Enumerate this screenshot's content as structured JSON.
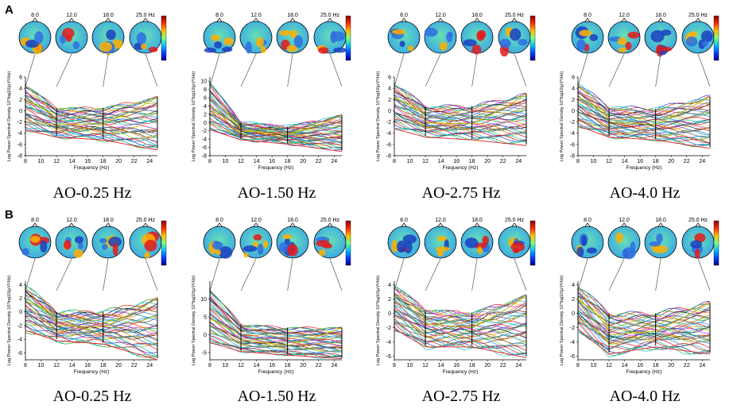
{
  "chart_data": [
    {
      "row": "A",
      "panels": [
        {
          "caption": "AO-0.25 Hz",
          "type": "line",
          "xlabel": "Frequency (Hz)",
          "ylabel": "Log Power Spectral Density 10*log10(μV²/Hz)",
          "x_ticks": [
            8,
            10,
            12,
            14,
            16,
            18,
            20,
            22,
            24
          ],
          "y_ticks": [
            -8,
            -6,
            -4,
            -2,
            0,
            2,
            4,
            6
          ],
          "xlim": [
            8,
            25
          ],
          "ylim": [
            -8,
            6
          ],
          "topo_labels": [
            "8.0",
            "12.0",
            "18.0",
            "25.0 Hz"
          ],
          "topo_freqs": [
            8,
            12,
            18,
            25
          ],
          "envelope": {
            "x": [
              8,
              12,
              18,
              25
            ],
            "high": [
              4.8,
              0.5,
              0.5,
              2.5
            ],
            "mean": [
              0.5,
              -2.5,
              -2.3,
              -3.5
            ],
            "low": [
              -3.2,
              -4.5,
              -5.0,
              -6.8
            ]
          }
        },
        {
          "caption": "AO-1.50 Hz",
          "type": "line",
          "xlabel": "Frequency (Hz)",
          "ylabel": "Log Power Spectral Density 10*log10(μV²/Hz)",
          "x_ticks": [
            8,
            10,
            12,
            14,
            16,
            18,
            20,
            22,
            24
          ],
          "y_ticks": [
            -8,
            -6,
            -4,
            -2,
            0,
            2,
            4,
            6,
            8,
            10
          ],
          "xlim": [
            8,
            25
          ],
          "ylim": [
            -8,
            11
          ],
          "topo_labels": [
            "8.0",
            "12.0",
            "18.0",
            "25.0 Hz"
          ],
          "topo_freqs": [
            8,
            12,
            18,
            25
          ],
          "envelope": {
            "x": [
              8,
              12,
              18,
              25
            ],
            "high": [
              10.0,
              0.0,
              -1.0,
              1.8
            ],
            "mean": [
              1.5,
              -2.0,
              -2.8,
              -4.2
            ],
            "low": [
              -1.5,
              -4.0,
              -5.0,
              -6.8
            ]
          }
        },
        {
          "caption": "AO-2.75 Hz",
          "type": "line",
          "xlabel": "Frequency (Hz)",
          "ylabel": "Log Power Spectral Density 10*log10(μV²/Hz)",
          "x_ticks": [
            8,
            10,
            12,
            14,
            16,
            18,
            20,
            22,
            24
          ],
          "y_ticks": [
            -8,
            -6,
            -4,
            -2,
            0,
            2,
            4,
            6
          ],
          "xlim": [
            8,
            25
          ],
          "ylim": [
            -8,
            6
          ],
          "topo_labels": [
            "8.0",
            "12.0",
            "18.0",
            "25.0 Hz"
          ],
          "topo_freqs": [
            8,
            12,
            18,
            25
          ],
          "envelope": {
            "x": [
              8,
              12,
              18,
              25
            ],
            "high": [
              5.0,
              0.8,
              0.8,
              3.0
            ],
            "mean": [
              1.0,
              -2.2,
              -2.3,
              -3.5
            ],
            "low": [
              -3.0,
              -4.5,
              -5.0,
              -6.0
            ]
          }
        },
        {
          "caption": "AO-4.0 Hz",
          "type": "line",
          "xlabel": "Frequency (Hz)",
          "ylabel": "Log Power Spectral Density 10*log10(μV²/Hz)",
          "x_ticks": [
            8,
            10,
            12,
            14,
            16,
            18,
            20,
            22,
            24
          ],
          "y_ticks": [
            -8,
            -6,
            -4,
            -2,
            0,
            2,
            4,
            6
          ],
          "xlim": [
            8,
            25
          ],
          "ylim": [
            -8,
            6
          ],
          "topo_labels": [
            "8.0",
            "12.0",
            "18.0",
            "25.0 Hz"
          ],
          "topo_freqs": [
            8,
            12,
            18,
            25
          ],
          "envelope": {
            "x": [
              8,
              12,
              18,
              25
            ],
            "high": [
              4.8,
              0.5,
              0.3,
              2.5
            ],
            "mean": [
              1.0,
              -2.0,
              -2.5,
              -3.0
            ],
            "low": [
              -2.5,
              -4.5,
              -5.0,
              -6.5
            ]
          }
        }
      ]
    },
    {
      "row": "B",
      "panels": [
        {
          "caption": "AO-0.25 Hz",
          "type": "line",
          "xlabel": "Frequency (Hz)",
          "ylabel": "Log Power Spectral Density 10*log10(μV²/Hz)",
          "x_ticks": [
            8,
            10,
            12,
            14,
            16,
            18,
            20,
            22,
            24
          ],
          "y_ticks": [
            -6,
            -4,
            -2,
            0,
            2,
            4
          ],
          "xlim": [
            8,
            25
          ],
          "ylim": [
            -7,
            4.5
          ],
          "topo_labels": [
            "8.0",
            "12.0",
            "18.0",
            "25.0 Hz"
          ],
          "topo_freqs": [
            8,
            12,
            18,
            25
          ],
          "envelope": {
            "x": [
              8,
              12,
              18,
              25
            ],
            "high": [
              4.0,
              0.0,
              0.0,
              2.0
            ],
            "mean": [
              0.5,
              -2.0,
              -2.2,
              -3.0
            ],
            "low": [
              -2.5,
              -4.0,
              -4.5,
              -6.8
            ]
          }
        },
        {
          "caption": "AO-1.50 Hz",
          "type": "line",
          "xlabel": "Frequency (Hz)",
          "ylabel": "Log Power Spectral Density 10*log10(μV²/Hz)",
          "x_ticks": [
            8,
            10,
            12,
            14,
            16,
            18,
            20,
            22,
            24
          ],
          "y_ticks": [
            -5,
            0,
            5,
            10
          ],
          "xlim": [
            8,
            25
          ],
          "ylim": [
            -7,
            15
          ],
          "topo_labels": [
            "8.0",
            "12.0",
            "18.0",
            "25.0 Hz"
          ],
          "topo_freqs": [
            8,
            12,
            18,
            25
          ],
          "envelope": {
            "x": [
              8,
              12,
              18,
              25
            ],
            "high": [
              13.0,
              3.0,
              2.0,
              2.0
            ],
            "mean": [
              3.0,
              -1.5,
              -3.0,
              -4.0
            ],
            "low": [
              -2.0,
              -4.5,
              -5.5,
              -6.5
            ]
          }
        },
        {
          "caption": "AO-2.75 Hz",
          "type": "line",
          "xlabel": "Frequency (Hz)",
          "ylabel": "Log Power Spectral Density 10*log10(μV²/Hz)",
          "x_ticks": [
            8,
            10,
            12,
            14,
            16,
            18,
            20,
            22,
            24
          ],
          "y_ticks": [
            -6,
            -4,
            -2,
            0,
            2,
            4
          ],
          "xlim": [
            8,
            25
          ],
          "ylim": [
            -6.5,
            4.5
          ],
          "topo_labels": [
            "8.0",
            "12.0",
            "18.0",
            "25.0 Hz"
          ],
          "topo_freqs": [
            8,
            12,
            18,
            25
          ],
          "envelope": {
            "x": [
              8,
              12,
              18,
              25
            ],
            "high": [
              4.0,
              0.5,
              0.0,
              2.5
            ],
            "mean": [
              1.0,
              -1.5,
              -2.0,
              -3.0
            ],
            "low": [
              -2.0,
              -4.5,
              -4.5,
              -6.0
            ]
          }
        },
        {
          "caption": "AO-4.0 Hz",
          "type": "line",
          "xlabel": "Frequency (Hz)",
          "ylabel": "Log Power Spectral Density 10*log10(μV²/Hz)",
          "x_ticks": [
            8,
            10,
            12,
            14,
            16,
            18,
            20,
            22,
            24
          ],
          "y_ticks": [
            -6,
            -4,
            -2,
            0,
            2,
            4
          ],
          "xlim": [
            8,
            25
          ],
          "ylim": [
            -6.5,
            4.5
          ],
          "topo_labels": [
            "8.0",
            "12.0",
            "18.0",
            "25.0 Hz"
          ],
          "topo_freqs": [
            8,
            12,
            18,
            25
          ],
          "envelope": {
            "x": [
              8,
              12,
              18,
              25
            ],
            "high": [
              4.0,
              0.0,
              0.0,
              1.5
            ],
            "mean": [
              0.5,
              -3.0,
              -2.5,
              -3.0
            ],
            "low": [
              -2.0,
              -5.5,
              -4.5,
              -5.5
            ]
          }
        }
      ]
    }
  ],
  "colors": {
    "series": [
      "#e31a1c",
      "#1f3fbf",
      "#2ca02c",
      "#17becf",
      "#c8b400",
      "#d62ad6",
      "#111111",
      "#7f3fbf",
      "#ff7f0e",
      "#8c2d04",
      "#3a7fd5",
      "#00a087",
      "#5a5a5a",
      "#b8860b",
      "#9acd32",
      "#1e90ff",
      "#dc143c",
      "#20b2aa"
    ],
    "highlight": "#c8b400",
    "topo_low": "#1a3fbf",
    "topo_mid": "#66e0b3",
    "topo_high": "#e31a1c",
    "colorbar": [
      "#8b0000",
      "#ff2a00",
      "#ffc000",
      "#7fff7f",
      "#00c0ff",
      "#0040ff",
      "#00008b"
    ]
  }
}
